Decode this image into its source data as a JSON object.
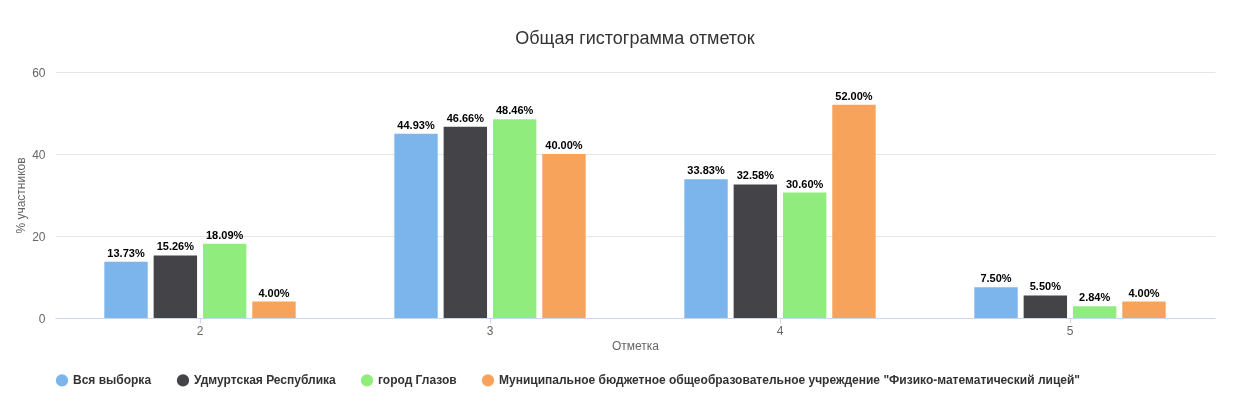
{
  "chart_data": {
    "type": "bar",
    "title": "Общая гистограмма отметок",
    "xlabel": "Отметка",
    "ylabel": "% участников",
    "categories": [
      "2",
      "3",
      "4",
      "5"
    ],
    "series": [
      {
        "name": "Вся выборка",
        "color": "#7cb5ec",
        "values": [
          13.73,
          44.93,
          33.83,
          7.5
        ],
        "value_labels": [
          "13.73%",
          "44.93%",
          "33.83%",
          "7.50%"
        ]
      },
      {
        "name": "Удмуртская Республика",
        "color": "#434348",
        "values": [
          15.26,
          46.66,
          32.58,
          5.5
        ],
        "value_labels": [
          "15.26%",
          "46.66%",
          "32.58%",
          "5.50%"
        ]
      },
      {
        "name": "город Глазов",
        "color": "#90ed7d",
        "values": [
          18.09,
          48.46,
          30.6,
          2.84
        ],
        "value_labels": [
          "18.09%",
          "48.46%",
          "30.60%",
          "2.84%"
        ]
      },
      {
        "name": "Муниципальное бюджетное общеобразовательное учреждение \"Физико-математический лицей\"",
        "color": "#f7a35c",
        "values": [
          4,
          40,
          52,
          4
        ],
        "value_labels": [
          "4.00%",
          "40.00%",
          "52.00%",
          "4.00%"
        ]
      }
    ],
    "ylim": [
      0,
      60
    ],
    "yticks": [
      0,
      20,
      40,
      60
    ],
    "grid": "y",
    "legend": "bottom"
  }
}
